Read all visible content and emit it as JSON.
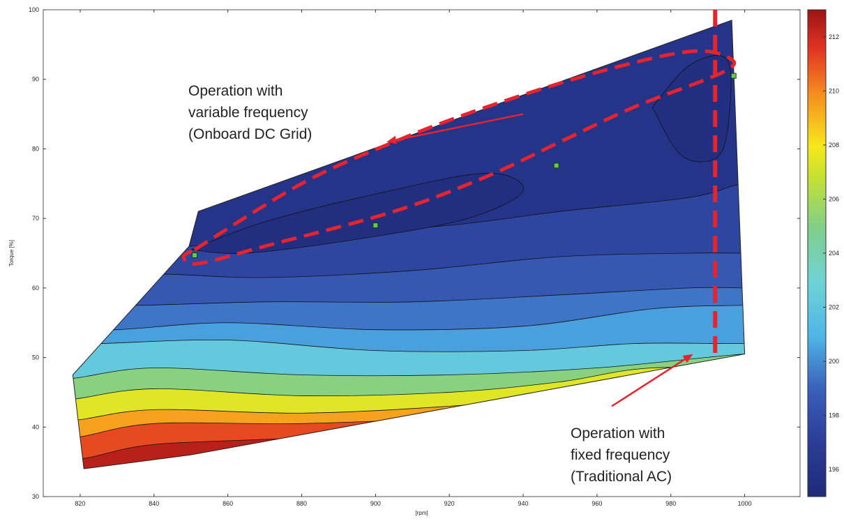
{
  "chart_data": {
    "type": "contour",
    "title": "",
    "xlabel": "[rpm]",
    "ylabel": "Torque [%]",
    "xlim": [
      810,
      1015
    ],
    "ylim": [
      30,
      100
    ],
    "xticks": [
      820,
      840,
      860,
      880,
      900,
      920,
      940,
      960,
      980,
      1000
    ],
    "yticks": [
      30,
      40,
      50,
      60,
      70,
      80,
      90,
      100
    ],
    "colorbar": {
      "range": [
        195,
        213
      ],
      "ticks": [
        196,
        198,
        200,
        202,
        204,
        206,
        208,
        210,
        212
      ]
    },
    "region_boundary": [
      [
        818,
        47.5
      ],
      [
        849.5,
        66
      ],
      [
        852,
        71
      ],
      [
        996.5,
        98.5
      ],
      [
        1000,
        50.5
      ],
      [
        850,
        36
      ],
      [
        821,
        34
      ],
      [
        818,
        47.5
      ]
    ],
    "level_bands": [
      {
        "level": 212,
        "upper_edge": [
          [
            821,
            35.5
          ],
          [
            840,
            37.5
          ],
          [
            880,
            38.5
          ],
          [
            900,
            40
          ],
          [
            930,
            42.5
          ],
          [
            950,
            44.5
          ]
        ]
      },
      {
        "level": 210,
        "upper_edge": [
          [
            819,
            38.5
          ],
          [
            840,
            40.5
          ],
          [
            880,
            40.5
          ],
          [
            920,
            41.5
          ],
          [
            960,
            44
          ],
          [
            985,
            46
          ]
        ]
      },
      {
        "level": 208,
        "upper_edge": [
          [
            819,
            41
          ],
          [
            840,
            42.5
          ],
          [
            880,
            42
          ],
          [
            920,
            43
          ],
          [
            950,
            44.5
          ],
          [
            975,
            47
          ]
        ]
      },
      {
        "level": 206,
        "upper_edge": [
          [
            818,
            44
          ],
          [
            840,
            45.5
          ],
          [
            880,
            44.5
          ],
          [
            920,
            45
          ],
          [
            950,
            46.5
          ],
          [
            975,
            48.5
          ]
        ]
      },
      {
        "level": 204,
        "upper_edge": [
          [
            818,
            47
          ],
          [
            840,
            48.5
          ],
          [
            880,
            47.5
          ],
          [
            920,
            47.5
          ],
          [
            960,
            48.5
          ],
          [
            1000,
            50.5
          ]
        ]
      },
      {
        "level": 202,
        "upper_edge": [
          [
            825,
            52
          ],
          [
            860,
            52.5
          ],
          [
            900,
            51
          ],
          [
            940,
            51
          ],
          [
            970,
            52
          ],
          [
            995,
            52
          ]
        ]
      },
      {
        "level": 200.5,
        "upper_edge": [
          [
            830,
            54
          ],
          [
            860,
            55
          ],
          [
            900,
            54
          ],
          [
            940,
            54.5
          ],
          [
            975,
            57
          ],
          [
            999,
            57.5
          ]
        ]
      },
      {
        "level": 199.5,
        "upper_edge": [
          [
            836,
            57.5
          ],
          [
            870,
            58
          ],
          [
            910,
            58
          ],
          [
            950,
            59
          ],
          [
            985,
            60
          ],
          [
            1000,
            60
          ]
        ]
      },
      {
        "level": 198.5,
        "upper_edge": [
          [
            842,
            62
          ],
          [
            870,
            61.5
          ],
          [
            910,
            62.5
          ],
          [
            950,
            64.5
          ],
          [
            985,
            65
          ],
          [
            1000,
            65
          ]
        ]
      },
      {
        "level": 197.5,
        "upper_edge": [
          [
            849,
            66
          ],
          [
            880,
            67.5
          ],
          [
            920,
            69
          ],
          [
            950,
            71
          ],
          [
            985,
            73
          ],
          [
            1000,
            75
          ]
        ]
      }
    ],
    "annotations": [
      {
        "lines": [
          "Operation with",
          "variable frequency",
          "(Onboard DC Grid)"
        ]
      },
      {
        "lines": [
          "Operation with",
          "fixed frequency",
          "(Traditional AC)"
        ]
      }
    ],
    "operating_points": [
      {
        "x": 851,
        "y": 64.7
      },
      {
        "x": 900,
        "y": 69
      },
      {
        "x": 949,
        "y": 77.6
      },
      {
        "x": 997,
        "y": 90.5
      }
    ],
    "variable_frequency_loop": [
      [
        851,
        65.5
      ],
      [
        880,
        75
      ],
      [
        905,
        81
      ],
      [
        930,
        86
      ],
      [
        960,
        91
      ],
      [
        985,
        94
      ],
      [
        996,
        93
      ],
      [
        994,
        91
      ],
      [
        970,
        86
      ],
      [
        950,
        81
      ],
      [
        930,
        76
      ],
      [
        905,
        71
      ],
      [
        870,
        66
      ],
      [
        852,
        63.5
      ],
      [
        848,
        64.5
      ],
      [
        851,
        65.5
      ]
    ],
    "fixed_frequency_line": [
      [
        992,
        100
      ],
      [
        992,
        50
      ]
    ],
    "arrow_variable": {
      "from": [
        940,
        85
      ],
      "to": [
        903,
        81
      ]
    },
    "arrow_fixed": {
      "from": [
        964,
        43
      ],
      "to": [
        986,
        50.5
      ]
    },
    "colors": {
      "dashed_line": "#e8232d",
      "arrow": "#e8232d",
      "marker": "#5fce4a",
      "contour_line": "#111111"
    }
  },
  "labels": {
    "xlabel": "[rpm]",
    "ylabel": "Torque [%]"
  }
}
